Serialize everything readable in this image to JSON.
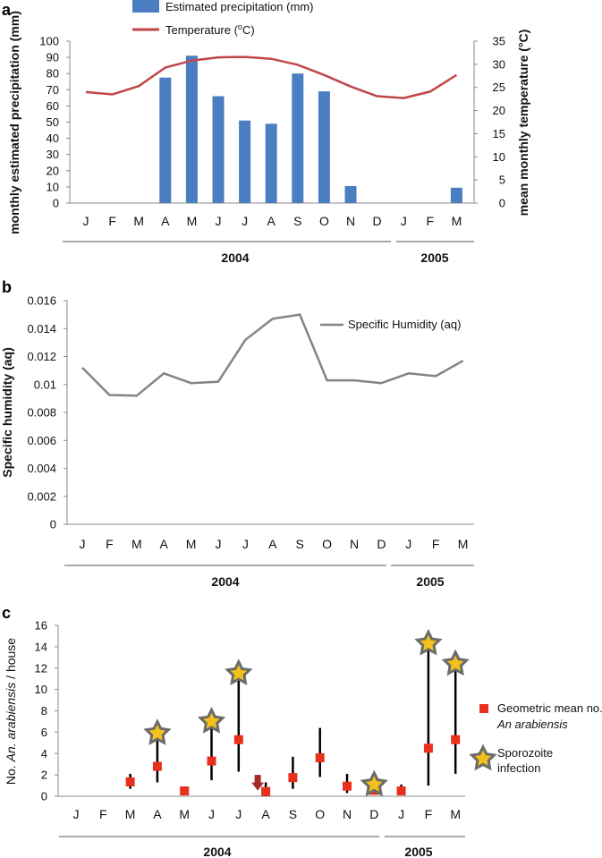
{
  "chart_data": [
    {
      "panel": "a",
      "type": "bar+line",
      "months": [
        "J",
        "F",
        "M",
        "A",
        "M",
        "J",
        "J",
        "A",
        "S",
        "O",
        "N",
        "D",
        "J",
        "F",
        "M"
      ],
      "years": [
        "2004",
        "2005"
      ],
      "series": [
        {
          "name": "Estimated precipitation (mm)",
          "type": "bar",
          "axis": "left",
          "color": "#4a7ec0",
          "values": [
            0,
            0,
            0,
            77.5,
            91,
            66,
            51,
            49,
            80,
            69,
            10.5,
            0,
            0,
            0,
            9.5
          ]
        },
        {
          "name": "Temperature (°C)",
          "type": "line",
          "axis": "right",
          "color": "#c0464a",
          "values": [
            24,
            23.5,
            25.3,
            29.3,
            30.8,
            31.5,
            31.6,
            31.2,
            29.9,
            27.7,
            25.2,
            23.1,
            22.7,
            24.1,
            27.7
          ]
        }
      ],
      "legend": {
        "precip": "Estimated precipitation (mm)",
        "temp_prefix": "Temperature (",
        "temp_sup": "o",
        "temp_suffix": "C)"
      },
      "ylabel_left": "monthly estimated precipitation (mm)",
      "ylabel_right": "mean monthly temperature (°C)",
      "ylim_left": [
        0,
        100
      ],
      "ylim_right": [
        0,
        35
      ],
      "yticks_left": [
        "0",
        "10",
        "20",
        "30",
        "40",
        "50",
        "60",
        "70",
        "80",
        "90",
        "100"
      ],
      "yticks_right": [
        "0",
        "5",
        "10",
        "15",
        "20",
        "25",
        "30",
        "35"
      ]
    },
    {
      "panel": "b",
      "type": "line",
      "months": [
        "J",
        "F",
        "M",
        "A",
        "M",
        "J",
        "J",
        "A",
        "S",
        "O",
        "N",
        "D",
        "J",
        "F",
        "M"
      ],
      "years": [
        "2004",
        "2005"
      ],
      "series": [
        {
          "name": "Specific Humidity (aq)",
          "color": "#848484",
          "values": [
            0.0112,
            0.00925,
            0.0092,
            0.0108,
            0.0101,
            0.0102,
            0.0132,
            0.0147,
            0.015,
            0.0103,
            0.0103,
            0.0101,
            0.0108,
            0.0106,
            0.0117
          ]
        }
      ],
      "ylabel": "Specific humidity (aq)",
      "ylim": [
        0,
        0.016
      ],
      "yticks": [
        "0",
        "0.002",
        "0.004",
        "0.006",
        "0.008",
        "0.01",
        "0.012",
        "0.014",
        "0.016"
      ]
    },
    {
      "panel": "c",
      "type": "scatter-errorbar",
      "months": [
        "J",
        "F",
        "M",
        "A",
        "M",
        "J",
        "J",
        "A",
        "S",
        "O",
        "N",
        "D",
        "J",
        "F",
        "M"
      ],
      "years": [
        "2004",
        "2005"
      ],
      "points": [
        {
          "month_index": 2,
          "mean": 1.35,
          "low": 0.7,
          "high": 2.1,
          "star": false
        },
        {
          "month_index": 3,
          "mean": 2.8,
          "low": 1.3,
          "high": 5.9,
          "star": true
        },
        {
          "month_index": 4,
          "mean": 0.5,
          "low": 0.5,
          "high": 0.5,
          "star": false
        },
        {
          "month_index": 5,
          "mean": 3.3,
          "low": 1.5,
          "high": 7.0,
          "star": true
        },
        {
          "month_index": 6,
          "mean": 5.3,
          "low": 2.3,
          "high": 11.5,
          "star": true
        },
        {
          "month_index": 7,
          "mean": 0.45,
          "low": 0,
          "high": 1.3,
          "star": false
        },
        {
          "month_index": 8,
          "mean": 1.75,
          "low": 0.7,
          "high": 3.7,
          "star": false
        },
        {
          "month_index": 9,
          "mean": 3.6,
          "low": 1.8,
          "high": 6.4,
          "star": false
        },
        {
          "month_index": 10,
          "mean": 0.95,
          "low": 0.3,
          "high": 2.1,
          "star": false
        },
        {
          "month_index": 11,
          "mean": 0.55,
          "low": 0.2,
          "high": 1.1,
          "star": true
        },
        {
          "month_index": 12,
          "mean": 0.5,
          "low": 0.1,
          "high": 1.1,
          "star": false
        },
        {
          "month_index": 13,
          "mean": 4.5,
          "low": 1.0,
          "high": 14.3,
          "star": true
        },
        {
          "month_index": 14,
          "mean": 5.3,
          "low": 2.1,
          "high": 12.4,
          "star": true
        }
      ],
      "arrow": {
        "month_index": 7,
        "from": 2.0,
        "to": 0.7,
        "color": "#a52a2a"
      },
      "ylabel_prefix": "No. ",
      "ylabel_italic": "An. arabiensis",
      "ylabel_suffix": " / house",
      "ylim": [
        0,
        16
      ],
      "yticks": [
        "0",
        "2",
        "4",
        "6",
        "8",
        "10",
        "12",
        "14",
        "16"
      ],
      "legend": {
        "mean_line1": "Geometric mean no.",
        "mean_line2": "An arabiensis",
        "star_line1": "Sporozoite",
        "star_line2": "infection"
      },
      "mean_color": "#e8301c",
      "star_fill": "#f2c21a",
      "star_stroke": "#6b6b6b"
    }
  ],
  "panel_labels": [
    "a",
    "b",
    "c"
  ]
}
